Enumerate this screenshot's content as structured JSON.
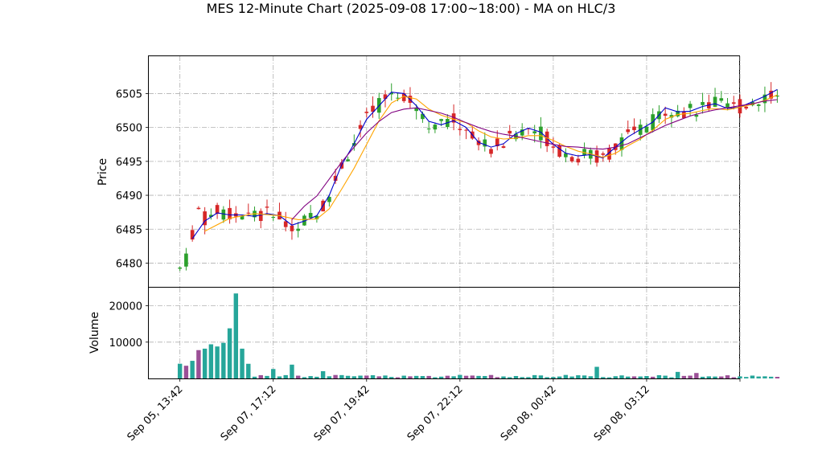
{
  "chart_data": {
    "type": "candlestick",
    "title": "MES 12-Minute Chart (2025-09-08 17:00~18:00) - MA on HLC/3",
    "price_panel": {
      "ylabel": "Price",
      "ylim": [
        6476.5,
        6510.5
      ],
      "yticks": [
        6480,
        6485,
        6490,
        6495,
        6500,
        6505
      ],
      "up_color": "#2ca02c",
      "down_color": "#d62728",
      "ma_series": [
        {
          "color": "#0000cc",
          "values": [
            [
              2,
              6483.6
            ],
            [
              4,
              6486.2
            ],
            [
              6,
              6487.4
            ],
            [
              8,
              6487.1
            ],
            [
              10,
              6487.1
            ],
            [
              12,
              6486.9
            ],
            [
              14,
              6487.3
            ],
            [
              16,
              6487.0
            ],
            [
              18,
              6485.6
            ],
            [
              20,
              6486.2
            ],
            [
              22,
              6487.0
            ],
            [
              24,
              6490.0
            ],
            [
              26,
              6494.5
            ],
            [
              28,
              6497.6
            ],
            [
              30,
              6501.2
            ],
            [
              32,
              6503.2
            ],
            [
              34,
              6505.2
            ],
            [
              36,
              6505.0
            ],
            [
              38,
              6503.2
            ],
            [
              40,
              6500.9
            ],
            [
              42,
              6500.4
            ],
            [
              44,
              6501.0
            ],
            [
              46,
              6500.0
            ],
            [
              48,
              6497.8
            ],
            [
              50,
              6497.1
            ],
            [
              52,
              6497.6
            ],
            [
              54,
              6499.1
            ],
            [
              56,
              6499.9
            ],
            [
              58,
              6499.3
            ],
            [
              60,
              6497.5
            ],
            [
              62,
              6496.2
            ],
            [
              64,
              6495.8
            ],
            [
              66,
              6496.0
            ],
            [
              68,
              6495.5
            ],
            [
              70,
              6497.1
            ],
            [
              72,
              6498.6
            ],
            [
              74,
              6499.7
            ],
            [
              76,
              6500.8
            ],
            [
              78,
              6502.9
            ],
            [
              80,
              6502.3
            ],
            [
              82,
              6502.4
            ],
            [
              84,
              6503.1
            ],
            [
              86,
              6503.5
            ],
            [
              88,
              6502.8
            ],
            [
              90,
              6503.0
            ],
            [
              92,
              6503.8
            ],
            [
              94,
              6504.6
            ],
            [
              96,
              6505.6
            ]
          ]
        },
        {
          "color": "#ffa500",
          "values": [
            [
              4,
              6484.7
            ],
            [
              8,
              6486.6
            ],
            [
              12,
              6487.3
            ],
            [
              16,
              6487.0
            ],
            [
              19,
              6486.4
            ],
            [
              22,
              6486.5
            ],
            [
              24,
              6488.0
            ],
            [
              26,
              6490.9
            ],
            [
              28,
              6494.0
            ],
            [
              30,
              6497.5
            ],
            [
              32,
              6501.0
            ],
            [
              34,
              6503.6
            ],
            [
              36,
              6504.6
            ],
            [
              38,
              6504.2
            ],
            [
              40,
              6502.7
            ],
            [
              42,
              6501.8
            ],
            [
              44,
              6501.2
            ],
            [
              46,
              6500.7
            ],
            [
              48,
              6499.5
            ],
            [
              50,
              6498.6
            ],
            [
              52,
              6498.3
            ],
            [
              54,
              6498.4
            ],
            [
              56,
              6498.8
            ],
            [
              58,
              6498.8
            ],
            [
              60,
              6498.1
            ],
            [
              62,
              6497.2
            ],
            [
              64,
              6496.5
            ],
            [
              66,
              6496.1
            ],
            [
              68,
              6495.6
            ],
            [
              70,
              6496.2
            ],
            [
              72,
              6497.3
            ],
            [
              74,
              6498.3
            ],
            [
              76,
              6499.6
            ],
            [
              78,
              6501.2
            ],
            [
              80,
              6501.9
            ],
            [
              82,
              6502.1
            ],
            [
              84,
              6502.5
            ],
            [
              86,
              6502.8
            ],
            [
              88,
              6502.6
            ],
            [
              90,
              6503.0
            ],
            [
              92,
              6503.4
            ],
            [
              94,
              6504.0
            ],
            [
              96,
              6504.8
            ]
          ]
        },
        {
          "color": "#800080",
          "values": [
            [
              18,
              6486.4
            ],
            [
              20,
              6488.4
            ],
            [
              22,
              6489.9
            ],
            [
              24,
              6492.4
            ],
            [
              26,
              6494.9
            ],
            [
              28,
              6497.1
            ],
            [
              30,
              6499.2
            ],
            [
              32,
              6500.9
            ],
            [
              34,
              6502.2
            ],
            [
              36,
              6502.7
            ],
            [
              38,
              6502.9
            ],
            [
              40,
              6502.5
            ],
            [
              42,
              6502.1
            ],
            [
              44,
              6501.5
            ],
            [
              46,
              6500.7
            ],
            [
              48,
              6500.0
            ],
            [
              50,
              6499.4
            ],
            [
              52,
              6499.0
            ],
            [
              54,
              6498.7
            ],
            [
              56,
              6498.3
            ],
            [
              58,
              6497.9
            ],
            [
              60,
              6497.5
            ],
            [
              62,
              6497.2
            ],
            [
              64,
              6497.1
            ],
            [
              66,
              6496.9
            ],
            [
              68,
              6496.8
            ],
            [
              70,
              6497.1
            ],
            [
              72,
              6497.6
            ],
            [
              74,
              6498.5
            ],
            [
              76,
              6499.4
            ],
            [
              78,
              6500.3
            ],
            [
              80,
              6501.0
            ],
            [
              82,
              6501.7
            ],
            [
              84,
              6502.2
            ],
            [
              86,
              6502.6
            ],
            [
              88,
              6502.9
            ],
            [
              90,
              6503.2
            ],
            [
              92,
              6503.5
            ],
            [
              94,
              6503.9
            ],
            [
              96,
              6504.1
            ]
          ]
        }
      ]
    },
    "volume_panel": {
      "ylabel": "Volume",
      "ylim": [
        0,
        25000
      ],
      "yticks": [
        10000,
        20000
      ],
      "bar_color": "#26a69a",
      "highlight": [
        [
          3,
          7800
        ],
        [
          4,
          8200
        ],
        [
          5,
          9400
        ],
        [
          6,
          8800
        ],
        [
          7,
          9800
        ],
        [
          8,
          13800
        ],
        [
          9,
          23400
        ],
        [
          10,
          8200
        ],
        [
          15,
          2600
        ],
        [
          18,
          3800
        ],
        [
          23,
          2000
        ],
        [
          67,
          3200
        ],
        [
          80,
          1800
        ],
        [
          83,
          1500
        ]
      ]
    },
    "x_axis": {
      "categories": [
        "Sep 05, 13:42",
        "Sep 07, 17:12",
        "Sep 07, 19:42",
        "Sep 07, 22:12",
        "Sep 08, 00:42",
        "Sep 08, 03:12"
      ],
      "positions": [
        0,
        15,
        30,
        45,
        60,
        75
      ],
      "xlim": [
        -5,
        90
      ],
      "n_bars": 97,
      "extra_tick": 90
    }
  }
}
